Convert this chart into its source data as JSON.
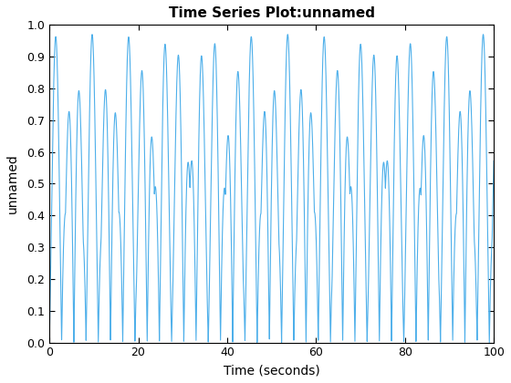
{
  "title": "Time Series Plot:unnamed",
  "xlabel": "Time (seconds)",
  "ylabel": "unnamed",
  "xlim": [
    0,
    100
  ],
  "ylim": [
    0,
    1
  ],
  "line_color": "#4dafea",
  "line_width": 0.8,
  "bg_color": "#ffffff",
  "xticks": [
    0,
    20,
    40,
    60,
    80,
    100
  ],
  "yticks": [
    0,
    0.1,
    0.2,
    0.3,
    0.4,
    0.5,
    0.6,
    0.7,
    0.8,
    0.9,
    1
  ],
  "title_fontsize": 11,
  "label_fontsize": 10
}
